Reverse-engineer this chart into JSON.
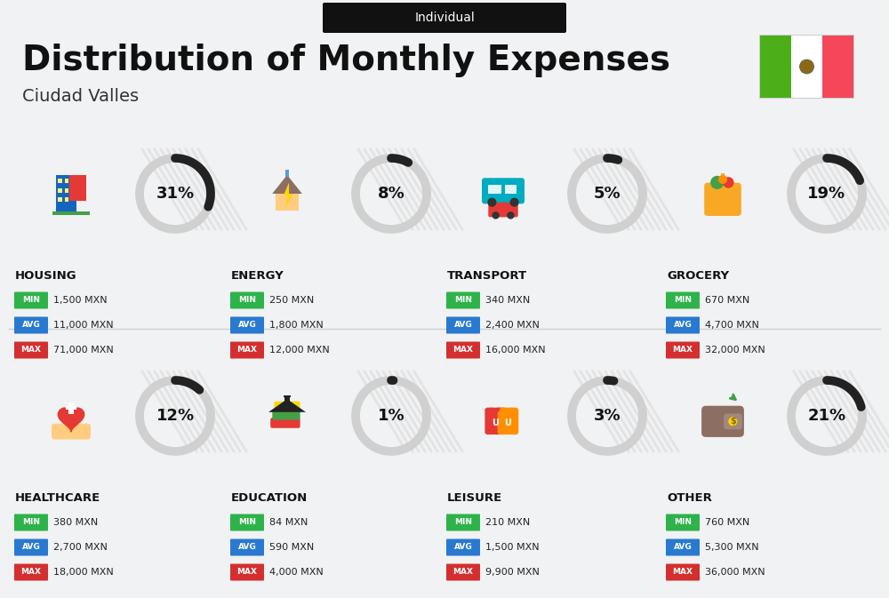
{
  "title": "Distribution of Monthly Expenses",
  "subtitle": "Individual",
  "city": "Ciudad Valles",
  "background_color": "#f0f2f4",
  "categories": [
    {
      "name": "HOUSING",
      "pct": 31,
      "min": "1,500 MXN",
      "avg": "11,000 MXN",
      "max": "71,000 MXN",
      "row": 0,
      "col": 0
    },
    {
      "name": "ENERGY",
      "pct": 8,
      "min": "250 MXN",
      "avg": "1,800 MXN",
      "max": "12,000 MXN",
      "row": 0,
      "col": 1
    },
    {
      "name": "TRANSPORT",
      "pct": 5,
      "min": "340 MXN",
      "avg": "2,400 MXN",
      "max": "16,000 MXN",
      "row": 0,
      "col": 2
    },
    {
      "name": "GROCERY",
      "pct": 19,
      "min": "670 MXN",
      "avg": "4,700 MXN",
      "max": "32,000 MXN",
      "row": 0,
      "col": 3
    },
    {
      "name": "HEALTHCARE",
      "pct": 12,
      "min": "380 MXN",
      "avg": "2,700 MXN",
      "max": "18,000 MXN",
      "row": 1,
      "col": 0
    },
    {
      "name": "EDUCATION",
      "pct": 1,
      "min": "84 MXN",
      "avg": "590 MXN",
      "max": "4,000 MXN",
      "row": 1,
      "col": 1
    },
    {
      "name": "LEISURE",
      "pct": 3,
      "min": "210 MXN",
      "avg": "1,500 MXN",
      "max": "9,900 MXN",
      "row": 1,
      "col": 2
    },
    {
      "name": "OTHER",
      "pct": 21,
      "min": "760 MXN",
      "avg": "5,300 MXN",
      "max": "36,000 MXN",
      "row": 1,
      "col": 3
    }
  ],
  "min_color": "#2db34a",
  "avg_color": "#2979d0",
  "max_color": "#d32f2f",
  "arc_filled_color": "#222222",
  "arc_bg_color": "#d0d0d0",
  "flag_green": "#4caf1a",
  "flag_white": "#ffffff",
  "flag_red": "#f4475a",
  "header_bg": "#111111",
  "divider_color": "#d0d0d0",
  "stripe_color": "#e0e0e0",
  "title_color": "#111111",
  "city_color": "#333333",
  "cat_name_color": "#111111"
}
